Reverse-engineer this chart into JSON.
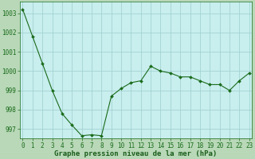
{
  "x": [
    0,
    1,
    2,
    3,
    4,
    5,
    6,
    7,
    8,
    9,
    10,
    11,
    12,
    13,
    14,
    15,
    16,
    17,
    18,
    19,
    20,
    21,
    22,
    23
  ],
  "y": [
    1003.2,
    1001.8,
    1000.4,
    999.0,
    997.8,
    997.2,
    996.65,
    996.7,
    996.65,
    998.7,
    999.1,
    999.4,
    999.5,
    1000.25,
    1000.0,
    999.9,
    999.7,
    999.7,
    999.5,
    999.3,
    999.3,
    999.0,
    999.5,
    999.9
  ],
  "xlabel": "Graphe pression niveau de la mer (hPa)",
  "ylim": [
    996.5,
    1003.6
  ],
  "yticks": [
    997,
    998,
    999,
    1000,
    1001,
    1002,
    1003
  ],
  "xticks": [
    0,
    1,
    2,
    3,
    4,
    5,
    6,
    7,
    8,
    9,
    10,
    11,
    12,
    13,
    14,
    15,
    16,
    17,
    18,
    19,
    20,
    21,
    22,
    23
  ],
  "line_color": "#1a6b1a",
  "marker_color": "#1a6b1a",
  "plot_bg_color": "#c8eeee",
  "grid_color": "#9ecece",
  "outer_bg_color": "#b8d8b8",
  "xlabel_color": "#1a5c1a",
  "tick_color": "#1a6b1a",
  "spine_color": "#1a6b1a",
  "figsize": [
    3.2,
    2.0
  ],
  "dpi": 100,
  "tick_fontsize": 5.5,
  "xlabel_fontsize": 6.5
}
